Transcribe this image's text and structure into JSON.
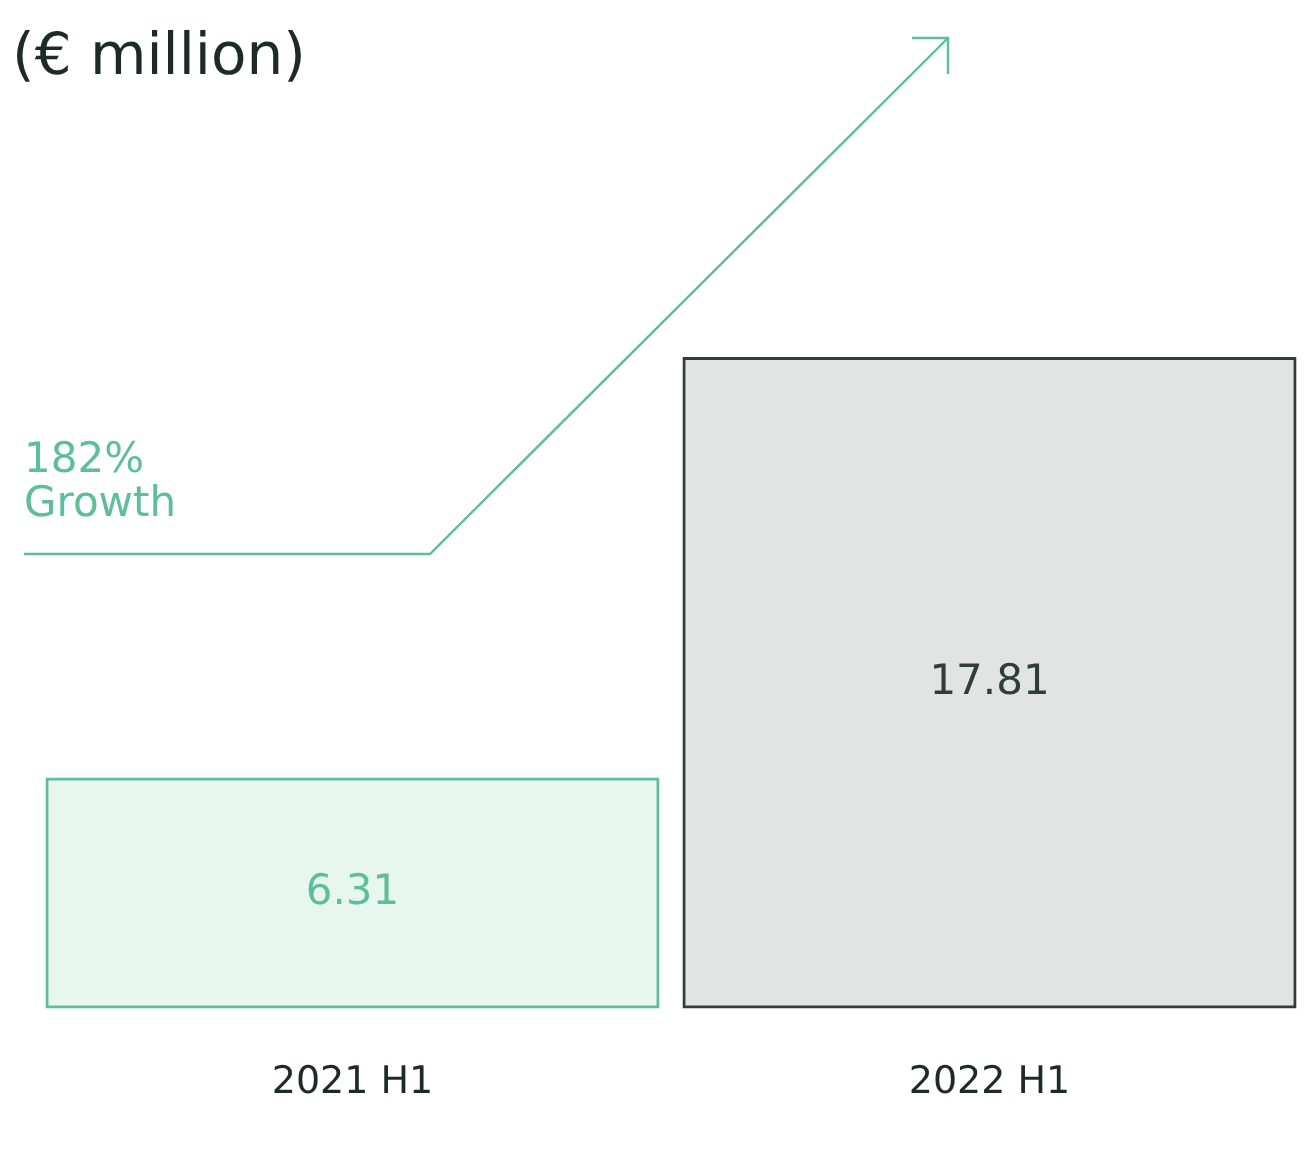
{
  "chart_data": {
    "type": "bar",
    "title": "(€ million)",
    "categories": [
      "2021 H1",
      "2022 H1"
    ],
    "values": [
      6.31,
      17.81
    ],
    "colors": [
      "#5dbe98",
      "#2f3d3f"
    ],
    "data_labels": true,
    "annotations": [
      "182% Growth"
    ]
  }
}
